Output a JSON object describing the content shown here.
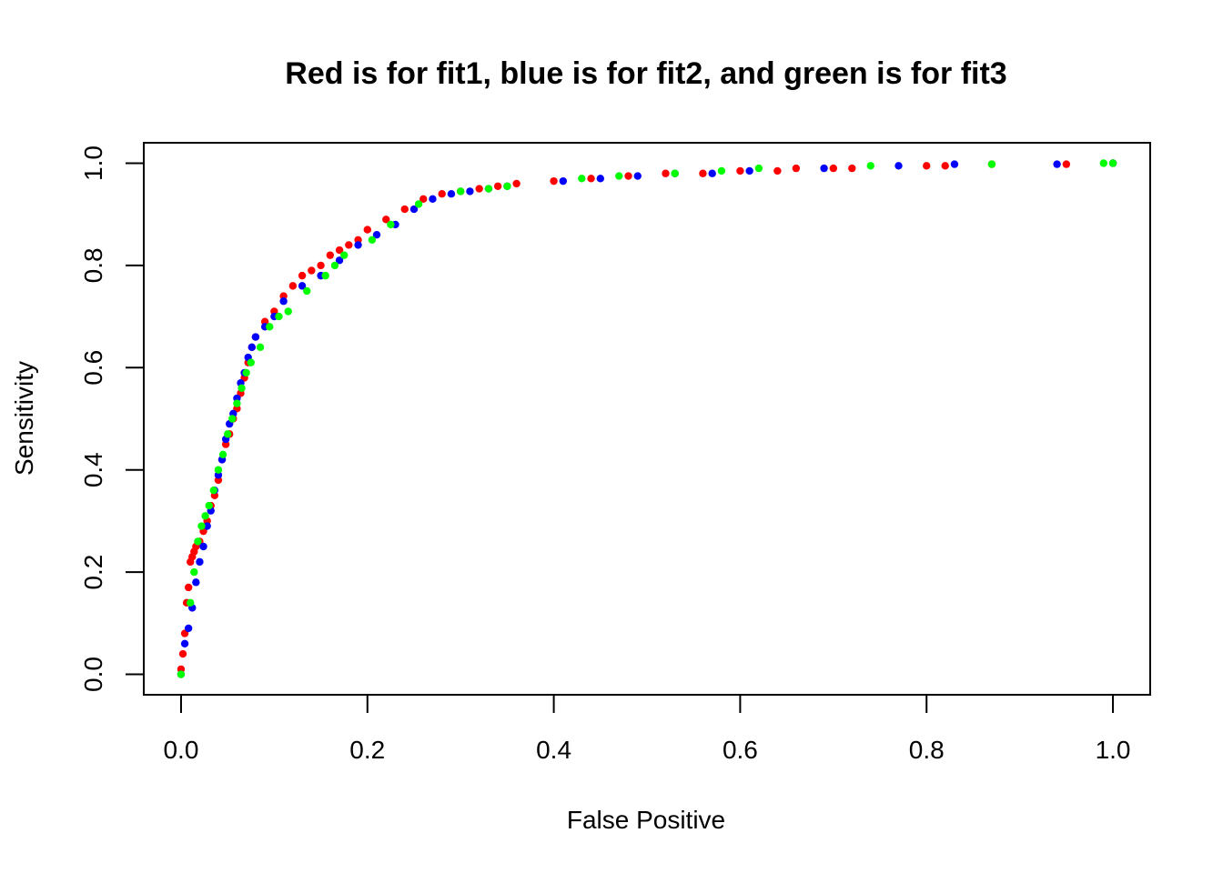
{
  "chart_data": {
    "type": "scatter",
    "title": "Red is for fit1, blue is for fit2, and green is for fit3",
    "xlabel": "False Positive",
    "ylabel": "Sensitivity",
    "xlim": [
      -0.04,
      1.04
    ],
    "ylim": [
      -0.04,
      1.04
    ],
    "xticks": [
      0.0,
      0.2,
      0.4,
      0.6,
      0.8,
      1.0
    ],
    "yticks": [
      0.0,
      0.2,
      0.4,
      0.6,
      0.8,
      1.0
    ],
    "xtick_labels": [
      "0.0",
      "0.2",
      "0.4",
      "0.6",
      "0.8",
      "1.0"
    ],
    "ytick_labels": [
      "0.0",
      "0.2",
      "0.4",
      "0.6",
      "0.8",
      "1.0"
    ],
    "grid": false,
    "legend": "none",
    "series": [
      {
        "color": "#ff0000",
        "x": [
          0.0,
          0.002,
          0.004,
          0.006,
          0.008,
          0.01,
          0.012,
          0.014,
          0.016,
          0.02,
          0.024,
          0.028,
          0.032,
          0.036,
          0.04,
          0.044,
          0.048,
          0.052,
          0.056,
          0.06,
          0.064,
          0.068,
          0.072,
          0.076,
          0.08,
          0.09,
          0.1,
          0.11,
          0.12,
          0.13,
          0.14,
          0.15,
          0.16,
          0.17,
          0.18,
          0.19,
          0.2,
          0.22,
          0.24,
          0.26,
          0.28,
          0.3,
          0.32,
          0.34,
          0.36,
          0.4,
          0.44,
          0.48,
          0.52,
          0.56,
          0.6,
          0.64,
          0.66,
          0.7,
          0.72,
          0.8,
          0.82,
          0.87,
          0.95,
          1.0
        ],
        "y": [
          0.01,
          0.04,
          0.08,
          0.14,
          0.17,
          0.22,
          0.23,
          0.24,
          0.25,
          0.26,
          0.28,
          0.3,
          0.33,
          0.35,
          0.38,
          0.42,
          0.45,
          0.47,
          0.5,
          0.52,
          0.55,
          0.58,
          0.61,
          0.64,
          0.66,
          0.69,
          0.71,
          0.74,
          0.76,
          0.78,
          0.79,
          0.8,
          0.82,
          0.83,
          0.84,
          0.85,
          0.87,
          0.89,
          0.91,
          0.93,
          0.94,
          0.945,
          0.95,
          0.955,
          0.96,
          0.965,
          0.97,
          0.975,
          0.98,
          0.98,
          0.985,
          0.985,
          0.99,
          0.99,
          0.99,
          0.995,
          0.995,
          0.998,
          0.998,
          1.0
        ]
      },
      {
        "color": "#0000ff",
        "x": [
          0.0,
          0.004,
          0.008,
          0.012,
          0.016,
          0.02,
          0.024,
          0.028,
          0.032,
          0.036,
          0.04,
          0.044,
          0.048,
          0.052,
          0.056,
          0.06,
          0.064,
          0.068,
          0.072,
          0.076,
          0.08,
          0.09,
          0.1,
          0.11,
          0.13,
          0.15,
          0.17,
          0.19,
          0.21,
          0.23,
          0.25,
          0.27,
          0.29,
          0.31,
          0.33,
          0.35,
          0.41,
          0.45,
          0.49,
          0.53,
          0.57,
          0.61,
          0.69,
          0.77,
          0.83,
          0.94,
          1.0
        ],
        "y": [
          0.0,
          0.06,
          0.09,
          0.13,
          0.18,
          0.22,
          0.25,
          0.29,
          0.32,
          0.36,
          0.39,
          0.42,
          0.46,
          0.49,
          0.51,
          0.54,
          0.57,
          0.59,
          0.62,
          0.64,
          0.66,
          0.68,
          0.7,
          0.73,
          0.76,
          0.78,
          0.81,
          0.84,
          0.86,
          0.88,
          0.91,
          0.93,
          0.94,
          0.945,
          0.95,
          0.955,
          0.965,
          0.97,
          0.975,
          0.98,
          0.98,
          0.985,
          0.99,
          0.995,
          0.998,
          0.998,
          1.0
        ]
      },
      {
        "color": "#00ff00",
        "x": [
          0.0,
          0.01,
          0.014,
          0.018,
          0.022,
          0.026,
          0.03,
          0.035,
          0.04,
          0.045,
          0.05,
          0.055,
          0.06,
          0.065,
          0.07,
          0.075,
          0.085,
          0.095,
          0.105,
          0.115,
          0.135,
          0.155,
          0.165,
          0.175,
          0.205,
          0.225,
          0.255,
          0.3,
          0.33,
          0.35,
          0.43,
          0.47,
          0.53,
          0.58,
          0.62,
          0.74,
          0.87,
          0.99,
          1.0
        ],
        "y": [
          0.0,
          0.14,
          0.2,
          0.26,
          0.29,
          0.31,
          0.33,
          0.36,
          0.4,
          0.43,
          0.47,
          0.5,
          0.53,
          0.56,
          0.59,
          0.61,
          0.64,
          0.68,
          0.7,
          0.71,
          0.75,
          0.78,
          0.8,
          0.82,
          0.85,
          0.88,
          0.92,
          0.945,
          0.95,
          0.955,
          0.97,
          0.975,
          0.98,
          0.985,
          0.99,
          0.995,
          0.998,
          1.0,
          1.0
        ]
      }
    ]
  }
}
